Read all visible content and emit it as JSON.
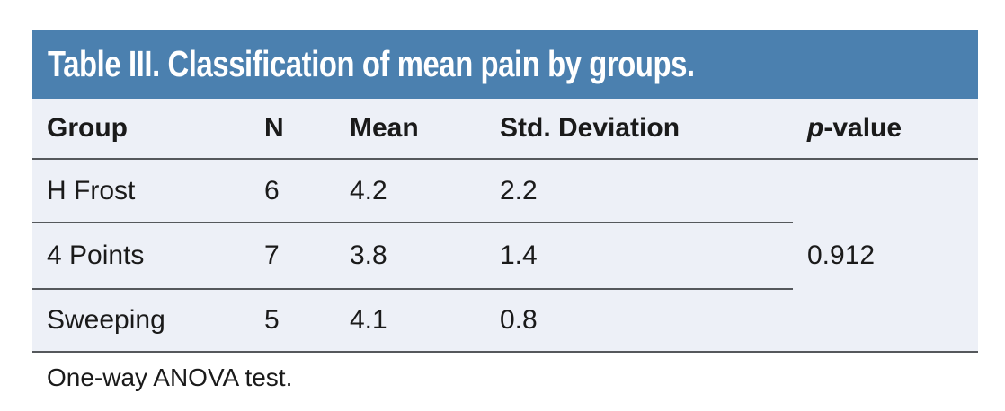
{
  "table": {
    "title": "Table III. Classification of mean pain by groups.",
    "columns": [
      {
        "label": "Group"
      },
      {
        "label": "N"
      },
      {
        "label": "Mean"
      },
      {
        "label": "Std. Deviation"
      }
    ],
    "p_header": {
      "italic_part": "p",
      "rest_part": "-value"
    },
    "rows": [
      {
        "group": "H Frost",
        "n": "6",
        "mean": "4.2",
        "std": "2.2"
      },
      {
        "group": "4 Points",
        "n": "7",
        "mean": "3.8",
        "std": "1.4"
      },
      {
        "group": "Sweeping",
        "n": "5",
        "mean": "4.1",
        "std": "0.8"
      }
    ],
    "p_value": "0.912",
    "footnote": "One-way ANOVA test."
  },
  "colors": {
    "header_bg": "#4b80af",
    "body_bg": "#edf0f7",
    "rule": "#55585c",
    "text": "#1a1a1a",
    "title_text": "#ffffff",
    "page_bg": "#ffffff"
  }
}
